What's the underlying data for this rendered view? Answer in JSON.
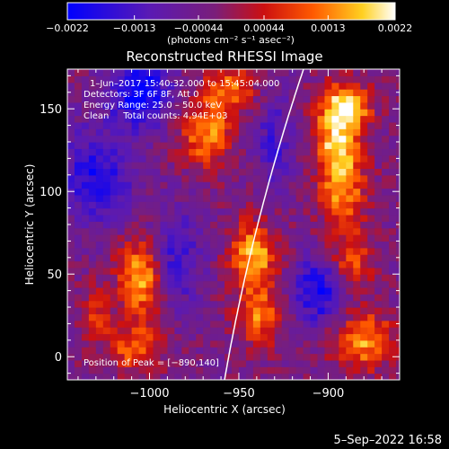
{
  "chart_data": {
    "type": "heatmap",
    "title": "Reconstructed RHESSI Image",
    "xlabel": "Heliocentric X (arcsec)",
    "ylabel": "Heliocentric Y (arcsec)",
    "xlim": [
      -1046,
      -860
    ],
    "ylim": [
      -14,
      174
    ],
    "x_ticks": [
      -1000,
      -950,
      -900
    ],
    "x_tick_labels": [
      "−1000",
      "−950",
      "−900"
    ],
    "y_ticks": [
      0,
      50,
      100,
      150
    ],
    "y_tick_labels": [
      "0",
      "50",
      "100",
      "150"
    ],
    "colorbar": {
      "range": [
        -0.0022,
        0.0022
      ],
      "ticks": [
        -0.0022,
        -0.0013,
        -0.00044,
        0.00044,
        0.0013,
        0.0022
      ],
      "tick_labels": [
        "−0.0022",
        "−0.0013",
        "−0.00044",
        "0.00044",
        "0.0013",
        "0.0022"
      ],
      "unit_label": "(photons cm⁻² s⁻¹ asec⁻²)",
      "colormap": "blue-purple-red-yellow-white"
    },
    "annotations": [
      "1–Jun–2017 15:40:32.000 to 15:45:04.000",
      "Detectors: 3F 6F 8F, Att 0",
      "Energy Range: 25.0 – 50.0 keV",
      "Clean     Total counts: 4.94E+03"
    ],
    "peak_label": "Position of Peak = [−890,140]",
    "peak": [
      -890,
      140
    ],
    "limb": true,
    "sources": [
      {
        "x": -891,
        "y": 151,
        "amp": 1.0,
        "sx": 10,
        "sy": 10
      },
      {
        "x": -895,
        "y": 128,
        "amp": 0.8,
        "sx": 9,
        "sy": 12
      },
      {
        "x": -892,
        "y": 100,
        "amp": 0.7,
        "sx": 9,
        "sy": 16
      },
      {
        "x": -887,
        "y": 58,
        "amp": 0.55,
        "sx": 8,
        "sy": 12
      },
      {
        "x": -880,
        "y": 10,
        "amp": 0.75,
        "sx": 12,
        "sy": 12
      },
      {
        "x": -942,
        "y": 62,
        "amp": 0.85,
        "sx": 9,
        "sy": 14
      },
      {
        "x": -938,
        "y": 25,
        "amp": 0.65,
        "sx": 9,
        "sy": 12
      },
      {
        "x": -955,
        "y": 162,
        "amp": 0.6,
        "sx": 10,
        "sy": 10
      },
      {
        "x": -968,
        "y": 135,
        "amp": 0.72,
        "sx": 10,
        "sy": 14
      },
      {
        "x": -1005,
        "y": 48,
        "amp": 0.85,
        "sx": 9,
        "sy": 16
      },
      {
        "x": -1008,
        "y": 5,
        "amp": 0.6,
        "sx": 10,
        "sy": 10
      },
      {
        "x": -1030,
        "y": 25,
        "amp": 0.4,
        "sx": 6,
        "sy": 12
      },
      {
        "x": -1005,
        "y": 160,
        "amp": -0.8,
        "sx": 12,
        "sy": 14
      },
      {
        "x": -985,
        "y": 60,
        "amp": -0.5,
        "sx": 10,
        "sy": 20
      },
      {
        "x": -1030,
        "y": 110,
        "amp": -0.6,
        "sx": 14,
        "sy": 20
      },
      {
        "x": -905,
        "y": 40,
        "amp": -0.7,
        "sx": 10,
        "sy": 14
      },
      {
        "x": -930,
        "y": 130,
        "amp": -0.4,
        "sx": 8,
        "sy": 20
      }
    ]
  },
  "footer": {
    "timestamp": "5–Sep–2022 16:58"
  }
}
